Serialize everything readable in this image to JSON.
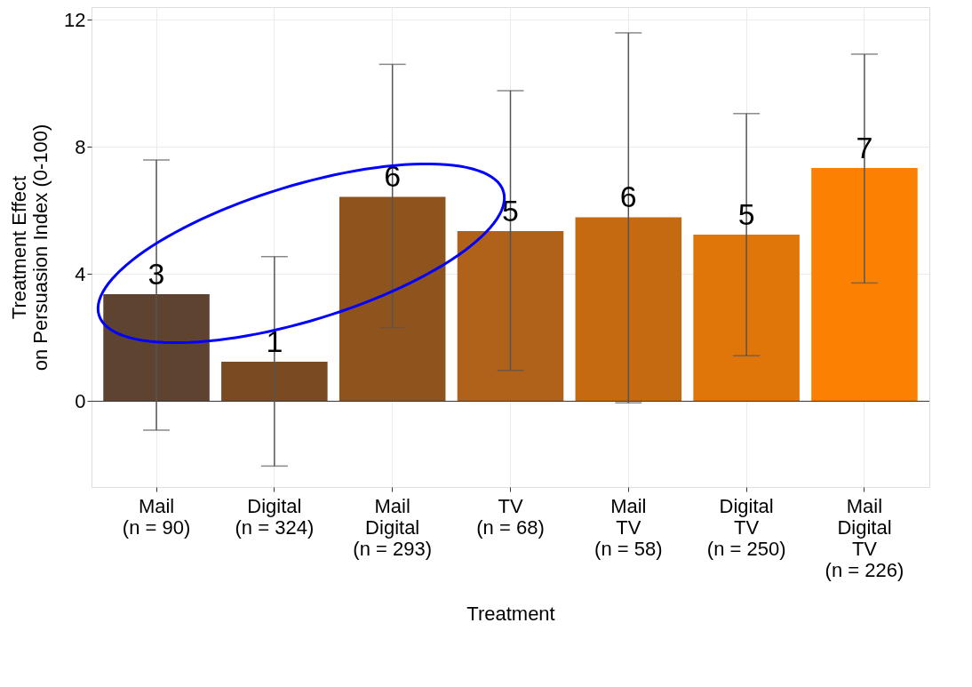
{
  "chart_data": {
    "type": "bar",
    "xlabel": "Treatment",
    "ylabel": "Treatment Effect\non Persuasion Index (0-100)",
    "categories": [
      "Mail\n(n = 90)",
      "Digital\n(n = 324)",
      "Mail\nDigital\n(n = 293)",
      "TV\n(n = 68)",
      "Mail\nTV\n(n = 58)",
      "Digital\nTV\n(n = 250)",
      "Mail\nDigital\nTV\n(n = 226)"
    ],
    "values": [
      3.37,
      1.24,
      6.43,
      5.35,
      5.79,
      5.24,
      7.34
    ],
    "colors": [
      "#5e4330",
      "#7a4b22",
      "#8f531e",
      "#b0621a",
      "#c66a12",
      "#e0750a",
      "#fc8001"
    ],
    "errors": [
      [
        -0.91,
        7.59
      ],
      [
        -2.04,
        4.55
      ],
      [
        2.32,
        10.6
      ],
      [
        0.97,
        9.77
      ],
      [
        -0.05,
        11.59
      ],
      [
        1.43,
        9.05
      ],
      [
        3.72,
        10.92
      ]
    ],
    "value_labels": [
      "3",
      "1",
      "6",
      "5",
      "6",
      "5",
      "7"
    ],
    "ylim": [
      -2.7,
      12.4
    ],
    "yticks": [
      0,
      4,
      8,
      12
    ],
    "ref_lines": [
      {
        "axis": "y",
        "value": 0,
        "color": "#333333"
      }
    ],
    "grid": true,
    "legend": false
  }
}
